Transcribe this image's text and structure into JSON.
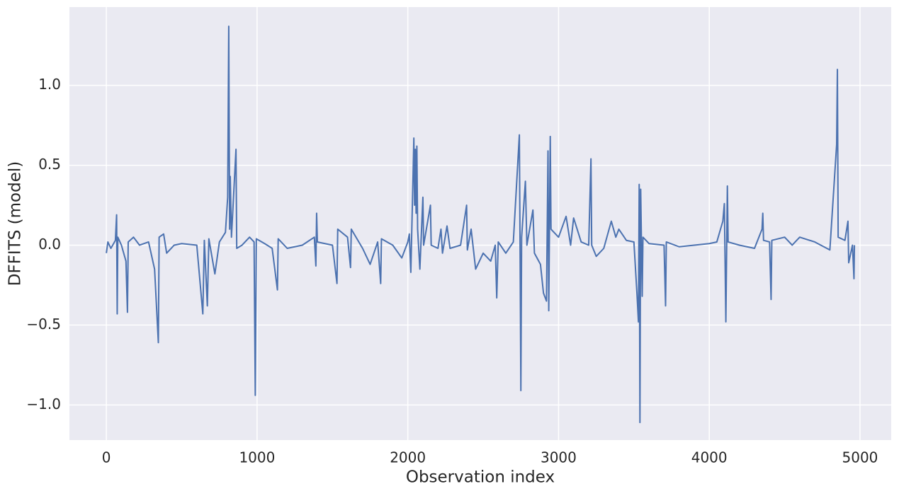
{
  "chart_data": {
    "type": "line",
    "xlabel": "Observation index",
    "ylabel": "DFFITS (model)",
    "color": "#4c72b0",
    "grid": true,
    "xlim": [
      -245,
      5207
    ],
    "ylim": [
      -1.22,
      1.49
    ],
    "xticks": [
      0,
      1000,
      2000,
      3000,
      4000,
      5000
    ],
    "yticks": [
      {
        "value": -1.0,
        "label": "−1.0"
      },
      {
        "value": -0.5,
        "label": "−0.5"
      },
      {
        "value": 0.0,
        "label": "0.0"
      },
      {
        "value": 0.5,
        "label": "0.5"
      },
      {
        "value": 1.0,
        "label": "1.0"
      }
    ],
    "x": [
      0,
      10,
      30,
      60,
      68,
      72,
      76,
      100,
      130,
      140,
      145,
      180,
      220,
      280,
      320,
      345,
      350,
      380,
      400,
      450,
      500,
      600,
      640,
      650,
      670,
      680,
      720,
      750,
      790,
      805,
      812,
      818,
      822,
      830,
      860,
      865,
      900,
      950,
      980,
      988,
      995,
      1050,
      1100,
      1135,
      1140,
      1200,
      1300,
      1380,
      1390,
      1395,
      1400,
      1450,
      1500,
      1530,
      1535,
      1600,
      1620,
      1625,
      1700,
      1750,
      1800,
      1820,
      1825,
      1900,
      1960,
      2000,
      2010,
      2020,
      2035,
      2040,
      2045,
      2050,
      2055,
      2060,
      2065,
      2080,
      2100,
      2105,
      2150,
      2155,
      2200,
      2220,
      2230,
      2260,
      2280,
      2350,
      2390,
      2395,
      2420,
      2450,
      2500,
      2550,
      2580,
      2590,
      2600,
      2650,
      2700,
      2740,
      2745,
      2750,
      2755,
      2780,
      2790,
      2830,
      2840,
      2880,
      2900,
      2920,
      2930,
      2935,
      2945,
      2950,
      3000,
      3050,
      3080,
      3100,
      3150,
      3200,
      3215,
      3220,
      3250,
      3300,
      3350,
      3380,
      3400,
      3450,
      3500,
      3520,
      3530,
      3535,
      3540,
      3545,
      3555,
      3560,
      3600,
      3700,
      3710,
      3715,
      3800,
      3900,
      4000,
      4050,
      4090,
      4100,
      4110,
      4120,
      4125,
      4200,
      4300,
      4350,
      4355,
      4360,
      4400,
      4410,
      4415,
      4500,
      4550,
      4600,
      4700,
      4800,
      4845,
      4850,
      4855,
      4900,
      4920,
      4925,
      4950,
      4960,
      4963
    ],
    "values": [
      -0.05,
      0.02,
      -0.02,
      0.03,
      0.19,
      -0.43,
      0.05,
      0.0,
      -0.1,
      -0.42,
      0.02,
      0.05,
      0.0,
      0.02,
      -0.15,
      -0.61,
      0.05,
      0.07,
      -0.05,
      0.0,
      0.01,
      0.0,
      -0.43,
      0.03,
      -0.38,
      0.04,
      -0.18,
      0.02,
      0.08,
      0.3,
      1.37,
      0.1,
      0.43,
      0.05,
      0.6,
      -0.02,
      0.0,
      0.05,
      0.02,
      -0.94,
      0.04,
      0.01,
      -0.02,
      -0.28,
      0.04,
      -0.02,
      0.0,
      0.05,
      -0.13,
      0.2,
      0.02,
      0.01,
      0.0,
      -0.24,
      0.1,
      0.05,
      -0.14,
      0.1,
      -0.02,
      -0.12,
      0.02,
      -0.24,
      0.04,
      0.0,
      -0.08,
      0.02,
      0.07,
      -0.17,
      0.45,
      0.67,
      0.25,
      0.6,
      0.2,
      0.62,
      0.1,
      -0.15,
      0.3,
      0.0,
      0.25,
      0.0,
      -0.02,
      0.1,
      -0.05,
      0.12,
      -0.02,
      0.0,
      0.25,
      -0.03,
      0.1,
      -0.15,
      -0.05,
      -0.1,
      0.0,
      -0.33,
      0.02,
      -0.05,
      0.02,
      0.69,
      -0.06,
      -0.91,
      0.05,
      0.4,
      0.0,
      0.22,
      -0.05,
      -0.12,
      -0.3,
      -0.35,
      0.59,
      -0.41,
      0.68,
      0.1,
      0.05,
      0.18,
      0.0,
      0.17,
      0.02,
      0.0,
      0.54,
      0.0,
      -0.07,
      -0.02,
      0.15,
      0.05,
      0.1,
      0.03,
      0.02,
      -0.3,
      -0.48,
      0.38,
      -1.11,
      0.35,
      -0.32,
      0.05,
      0.01,
      0.0,
      -0.38,
      0.02,
      -0.01,
      0.0,
      0.01,
      0.02,
      0.15,
      0.26,
      -0.48,
      0.37,
      0.02,
      0.0,
      -0.02,
      0.1,
      0.2,
      0.03,
      0.02,
      -0.34,
      0.03,
      0.05,
      0.0,
      0.05,
      0.02,
      -0.03,
      0.63,
      1.1,
      0.05,
      0.03,
      0.15,
      -0.11,
      0.0,
      -0.21,
      0.0
    ]
  }
}
